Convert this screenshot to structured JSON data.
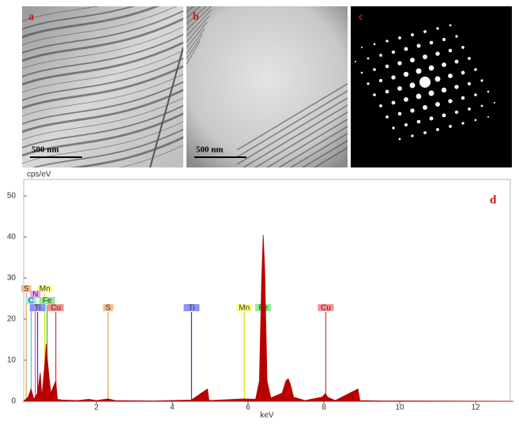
{
  "panels": [
    {
      "letter": "a",
      "scale": "500 nm"
    },
    {
      "letter": "b",
      "scale": "500 nm"
    },
    {
      "letter": "c"
    }
  ],
  "chart_data": {
    "type": "area",
    "letter": "d",
    "y_label": "cps/eV",
    "x_label": "keV",
    "color": "#b80000",
    "xlim": [
      0,
      13
    ],
    "ylim": [
      0,
      54
    ],
    "xticks": [
      2,
      4,
      6,
      8,
      10,
      12
    ],
    "yticks": [
      0,
      10,
      20,
      30,
      40,
      50
    ],
    "x": [
      0.08,
      0.2,
      0.28,
      0.35,
      0.45,
      0.52,
      0.56,
      0.64,
      0.68,
      0.71,
      0.75,
      0.8,
      0.93,
      0.97,
      1.1,
      1.5,
      1.8,
      2.0,
      2.31,
      2.5,
      3.5,
      4.5,
      4.93,
      4.97,
      5.9,
      6.2,
      6.3,
      6.36,
      6.4,
      6.44,
      6.5,
      6.6,
      6.9,
      7.0,
      7.06,
      7.12,
      7.2,
      7.5,
      7.95,
      8.04,
      8.1,
      8.3,
      8.9,
      8.95,
      9.5,
      13
    ],
    "values": [
      0,
      1,
      3,
      0.5,
      2,
      7,
      1,
      9,
      14,
      10,
      6,
      2,
      5,
      0.5,
      0.3,
      0.2,
      0.5,
      0.2,
      0.6,
      0.2,
      0.1,
      0.3,
      3,
      0.2,
      0.6,
      0.5,
      5,
      30,
      40.5,
      32,
      5,
      0.8,
      2,
      5,
      5.5,
      4,
      1,
      0.2,
      1,
      1.9,
      1,
      0.2,
      3,
      0.2,
      0.1,
      0
    ],
    "markers": [
      {
        "label": "S",
        "energy": 0.15,
        "color": "#f4c08a"
      },
      {
        "label": "Mn",
        "energy": 0.64,
        "color": "#ffff80"
      },
      {
        "label": "N",
        "energy": 0.39,
        "color": "#f0a0f0"
      },
      {
        "label": "C",
        "energy": 0.28,
        "color": "#90f0f0"
      },
      {
        "label": "Fe",
        "energy": 0.7,
        "color": "#90f090"
      },
      {
        "label": "Ti",
        "energy": 0.45,
        "color": "#9090f8"
      },
      {
        "label": "Cu",
        "energy": 0.93,
        "color": "#f89090"
      },
      {
        "label": "S",
        "energy": 2.31,
        "color": "#f4c08a"
      },
      {
        "label": "Ti",
        "energy": 4.51,
        "color": "#9090f8"
      },
      {
        "label": "Mn",
        "energy": 5.9,
        "color": "#ffff80"
      },
      {
        "label": "Fe",
        "energy": 6.4,
        "color": "#90f090"
      },
      {
        "label": "Cu",
        "energy": 8.05,
        "color": "#f89090"
      }
    ]
  }
}
